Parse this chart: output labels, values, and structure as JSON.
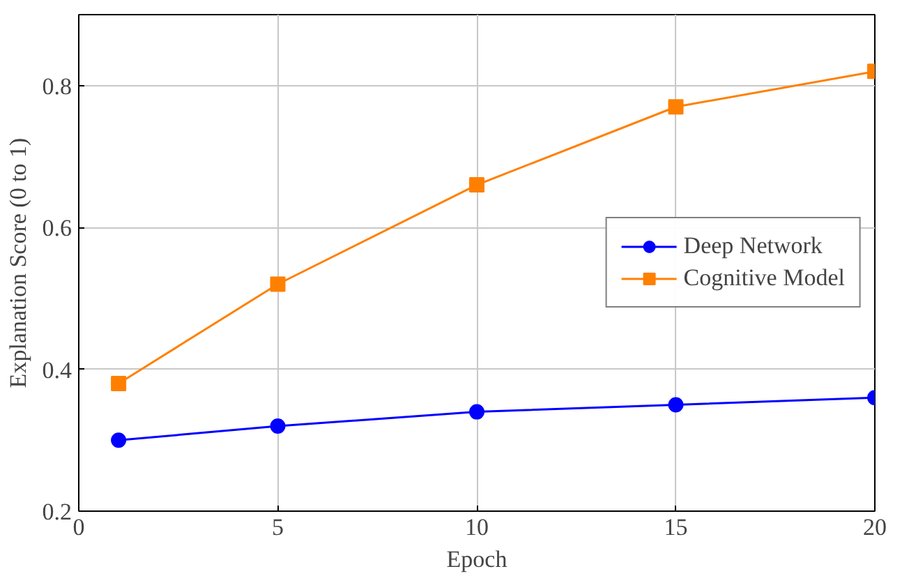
{
  "chart_data": {
    "type": "line",
    "xlabel": "Epoch",
    "ylabel": "Explanation Score (0 to 1)",
    "x": [
      1,
      5,
      10,
      15,
      20
    ],
    "series": [
      {
        "name": "Deep Network",
        "color": "#0000ff",
        "marker": "circle",
        "values": [
          0.3,
          0.32,
          0.34,
          0.35,
          0.36
        ]
      },
      {
        "name": "Cognitive Model",
        "color": "#ff8000",
        "marker": "square",
        "values": [
          0.38,
          0.52,
          0.66,
          0.77,
          0.82
        ]
      }
    ],
    "xlim": [
      0,
      20
    ],
    "ylim": [
      0.2,
      0.9
    ],
    "xticks": [
      0,
      5,
      10,
      15,
      20
    ],
    "yticks": [
      0.2,
      0.4,
      0.6,
      0.8
    ],
    "grid": true,
    "legend": "right",
    "line_style": "solid"
  }
}
